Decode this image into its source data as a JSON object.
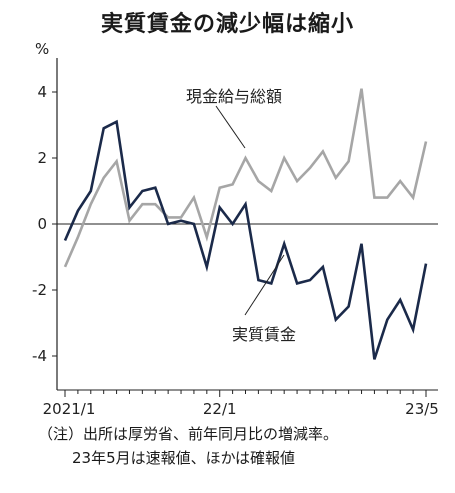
{
  "chart_data": {
    "type": "line",
    "title": "実質賃金の減少幅は縮小",
    "ylabel": "%",
    "ylim": [
      -5,
      5
    ],
    "yticks": [
      "4",
      "2",
      "0",
      "-2",
      "-4"
    ],
    "ytick_values": [
      4,
      2,
      0,
      -2,
      -4
    ],
    "x_tick_labels": [
      "2021/1",
      "22/1",
      "23/5"
    ],
    "x_tick_index": [
      0,
      12,
      28
    ],
    "x": [
      "2021/1",
      "2021/2",
      "2021/3",
      "2021/4",
      "2021/5",
      "2021/6",
      "2021/7",
      "2021/8",
      "2021/9",
      "2021/10",
      "2021/11",
      "2021/12",
      "2022/1",
      "2022/2",
      "2022/3",
      "2022/4",
      "2022/5",
      "2022/6",
      "2022/7",
      "2022/8",
      "2022/9",
      "2022/10",
      "2022/11",
      "2022/12",
      "2023/1",
      "2023/2",
      "2023/3",
      "2023/4",
      "2023/5"
    ],
    "grid": false,
    "series": [
      {
        "name": "現金給与総額",
        "color": "#a6a6a6",
        "values": [
          -1.3,
          -0.4,
          0.6,
          1.4,
          1.9,
          0.1,
          0.6,
          0.6,
          0.2,
          0.2,
          0.8,
          -0.4,
          1.1,
          1.2,
          2.0,
          1.3,
          1.0,
          2.0,
          1.3,
          1.7,
          2.2,
          1.4,
          1.9,
          4.1,
          0.8,
          0.8,
          1.3,
          0.8,
          2.5
        ]
      },
      {
        "name": "実質賃金",
        "color": "#1b2a4a",
        "values": [
          -0.5,
          0.4,
          1.0,
          2.9,
          3.1,
          0.5,
          1.0,
          1.1,
          0.0,
          0.1,
          0.0,
          -1.3,
          0.5,
          0.0,
          0.6,
          -1.7,
          -1.8,
          -0.6,
          -1.8,
          -1.7,
          -1.3,
          -2.9,
          -2.5,
          -0.6,
          -4.1,
          -2.9,
          -2.3,
          -3.2,
          -1.2
        ]
      }
    ]
  },
  "footnote": {
    "line1": "（注）出所は厚労省、前年同月比の増減率。",
    "line2": "23年5月は速報値、ほかは確報値"
  }
}
